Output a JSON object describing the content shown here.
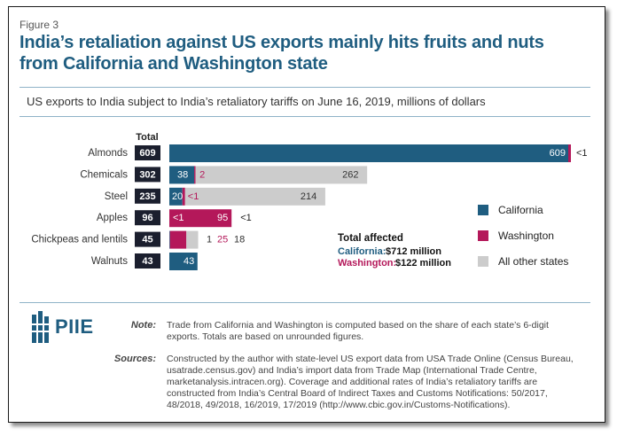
{
  "figure_label": "Figure 3",
  "title_line1": "India’s retaliation against US exports mainly hits fruits and nuts",
  "title_line2": "from California and Washington state",
  "colors": {
    "california": "#1f5d80",
    "washington": "#b4185a",
    "other": "#cccccc",
    "total_box": "#1b1f2e"
  },
  "chart_data": {
    "type": "bar",
    "stacked": true,
    "orientation": "horizontal",
    "title": "US exports to India subject to India’s retaliatory tariffs on June 16, 2019, millions of dollars",
    "total_header": "Total",
    "categories": [
      "Almonds",
      "Chemicals",
      "Steel",
      "Apples",
      "Chickpeas and lentils",
      "Walnuts"
    ],
    "totals": [
      "609",
      "302",
      "235",
      "96",
      "45",
      "43"
    ],
    "series": [
      {
        "name": "California",
        "values": [
          609,
          38,
          20,
          0.5,
          1,
          43
        ],
        "labels": [
          "609",
          "38",
          "20",
          "<1",
          "1",
          "43"
        ]
      },
      {
        "name": "Washington",
        "values": [
          0.5,
          2,
          0.5,
          95,
          25,
          0
        ],
        "labels": [
          "<1",
          "2",
          "<1",
          "95",
          "25",
          ""
        ]
      },
      {
        "name": "All other states",
        "values": [
          0,
          262,
          214,
          0.5,
          18,
          0
        ],
        "labels": [
          "",
          "262",
          "214",
          "<1",
          "18",
          ""
        ]
      }
    ],
    "legend": [
      "California",
      "Washington",
      "All other states"
    ],
    "annotation": {
      "heading": "Total affected",
      "california_label": "California:",
      "california_value": "$712 million",
      "washington_label": "Washington:",
      "washington_value": "$122 million"
    }
  },
  "note_key": "Note:",
  "note_text": "Trade from California and Washington is computed based on the share of each state’s 6-digit exports. Totals are based on unrounded figures.",
  "sources_key": "Sources:",
  "sources_text": "Constructed by the author with state-level US export data from USA Trade Online (Census Bureau, usatrade.census.gov) and India’s import data from Trade Map (International Trade Centre, marketanalysis.intracen.org). Coverage and additional rates of India’s retaliatory tariffs are constructed from India’s Central Board of Indirect Taxes and Customs Notifications: 50/2017, 48/2018, 49/2018, 16/2019, 17/2019 (http://www.cbic.gov.in/Customs-Notifications).",
  "logo_text": "PIIE"
}
